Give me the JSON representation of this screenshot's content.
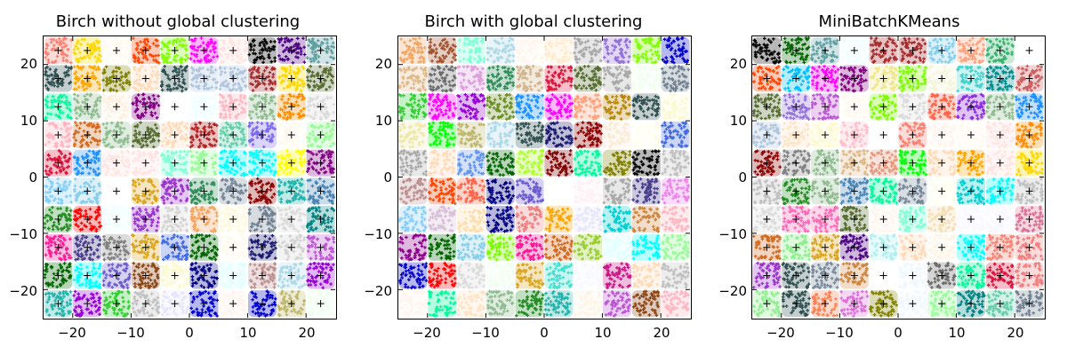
{
  "chart_data": [
    {
      "type": "scatter",
      "title": "Birch without global clustering",
      "xlabel": "",
      "ylabel": "",
      "xlim": [
        -25,
        25
      ],
      "ylim": [
        -25,
        25
      ],
      "xticks": [
        -20,
        -10,
        0,
        10,
        20
      ],
      "yticks": [
        20,
        10,
        0,
        -10,
        -20
      ],
      "xtick_labels": [
        "−20",
        "−10",
        "0",
        "10",
        "20"
      ],
      "ytick_labels": [
        "20",
        "10",
        "0",
        "−10",
        "−20"
      ],
      "grid": false,
      "legend": null,
      "description": "Colored point blobs on a 10x10 grid of cluster centres; black + marks subcluster centroids",
      "grid_centers": [
        -22.5,
        -17.5,
        -12.5,
        -7.5,
        -2.5,
        2.5,
        7.5,
        12.5,
        17.5,
        22.5
      ],
      "cell_colors": [
        [
          "#fa8072",
          "#ffd700",
          "#fffaf0",
          "#ff4500",
          "#7fff00",
          "#ff00ff",
          "#ffe4e1",
          "#000000",
          "#4b0082",
          "#5f9ea0"
        ],
        [
          "#2f4f4f",
          "#ffa500",
          "#808000",
          "#ffdab9",
          "#2f4f4f",
          "#b0c4de",
          "#b0c4de",
          "#a52a2a",
          "#ffd700",
          "#556b2f"
        ],
        [
          "#00fa9a",
          "#8fbc8f",
          "#fff0e0",
          "#800080",
          "#ffffff",
          "#f0ffff",
          "#ffb6c1",
          "#8fbc8f",
          "#ff8c00",
          "#dcdcdc"
        ],
        [
          "#ffb6c1",
          "#d2691e",
          "#8fbc8f",
          "#556b2f",
          "#ffdab9",
          "#b22222",
          "#66cdaa",
          "#7b68ee",
          "#fffaf0",
          "#98fb98"
        ],
        [
          "#dc143c",
          "#1e90ff",
          "#ffe4e1",
          "#ffe4e1",
          "#7fffd4",
          "#98fb98",
          "#00ffff",
          "#00ffff",
          "#ffff00",
          "#800080"
        ],
        [
          "#87cefa",
          "#87ceeb",
          "#ffffff",
          "#daa520",
          "#9932cc",
          "#2e8b57",
          "#778899",
          "#8b0000",
          "#20b2aa",
          "#4682b4"
        ],
        [
          "#228b22",
          "#ff0000",
          "#f0ffff",
          "#9932cc",
          "#d3d3d3",
          "#f4a460",
          "#fff8dc",
          "#708090",
          "#dcdcdc",
          "#008080"
        ],
        [
          "#ff1493",
          "#483d8b",
          "#808080",
          "#daa520",
          "#4169e1",
          "#006400",
          "#fffaf0",
          "#191970",
          "#d3d3d3",
          "#ba55d3"
        ],
        [
          "#006400",
          "#00ffff",
          "#6a5acd",
          "#8b4513",
          "#fafad2",
          "#000080",
          "#e0ffff",
          "#bc8f8f",
          "#add8e6",
          "#9400d3"
        ],
        [
          "#20b2aa",
          "#9400d3",
          "#32cd32",
          "#c0c0c0",
          "#e6e6fa",
          "#0000cd",
          "#fff5ee",
          "#0000cd",
          "#bdb76b",
          "#f0fff0"
        ]
      ],
      "extra_bottom_row": [
        "#ffe4c4",
        "#fffaf0",
        "#808080",
        "#ee82ee",
        "#c71585",
        "#ff00ff",
        "#a0522d",
        "#deb887",
        "#9acd32",
        "#afeeee"
      ]
    },
    {
      "type": "scatter",
      "title": "Birch with global clustering",
      "xlabel": "",
      "ylabel": "",
      "xlim": [
        -25,
        25
      ],
      "ylim": [
        -25,
        25
      ],
      "xticks": [
        -20,
        -10,
        0,
        10,
        20
      ],
      "yticks": [
        20,
        10,
        0,
        -10,
        -20
      ],
      "xtick_labels": [
        "−20",
        "−10",
        "0",
        "10",
        "20"
      ],
      "ytick_labels": [
        "20",
        "10",
        "0",
        "−10",
        "−20"
      ],
      "grid": false,
      "legend": null,
      "description": "Colored point blobs on a 10x10 grid, 100 global clusters; no centroid markers",
      "grid_centers": [
        -22.5,
        -17.5,
        -12.5,
        -7.5,
        -2.5,
        2.5,
        7.5,
        12.5,
        17.5,
        22.5
      ],
      "cell_colors": [
        [
          "#f4a460",
          "#a0522d",
          "#7fffd4",
          "#add8e6",
          "#fff5ee",
          "#ffebcd",
          "#a9a9a9",
          "#9370db",
          "#7fff00",
          "#0000cd"
        ],
        [
          "#deb887",
          "#696969",
          "#dda0dd",
          "#2e8b57",
          "#d2b48c",
          "#dc143c",
          "#556b2f",
          "#a9a9a9",
          "#f0fff0",
          "#708090"
        ],
        [
          "#32cd32",
          "#ff00ff",
          "#9400d3",
          "#6b8e23",
          "#1e90ff",
          "#ff00ff",
          "#ffa07a",
          "#b8860b",
          "#2f4f4f",
          "#fafad2"
        ],
        [
          "#eee8aa",
          "#00ff00",
          "#bdb76b",
          "#add8e6",
          "#2f4f4f",
          "#191970",
          "#8b0000",
          "#faebd7",
          "#fffff0",
          "#4169e1"
        ],
        [
          "#a9a9a9",
          "#ffdab9",
          "#6495ed",
          "#006400",
          "#adff2f",
          "#800000",
          "#00fa9a",
          "#808000",
          "#000000",
          "#c0c0c0"
        ],
        [
          "#bc8f8f",
          "#ff4500",
          "#ff6347",
          "#000080",
          "#6a5acd",
          "#ffffff",
          "#fff0f5",
          "#a9a9a9",
          "#483d8b",
          "#ee82ee"
        ],
        [
          "#87cefa",
          "#d8bfd8",
          "#ffdead",
          "#000080",
          "#f08080",
          "#ffa500",
          "#e6e6fa",
          "#00ced1",
          "#cd853f",
          "#ffb6c1"
        ],
        [
          "#8b008b",
          "#006400",
          "#87ceeb",
          "#7cfc00",
          "#ff1493",
          "#d2691e",
          "#9acd32",
          "#e0ffff",
          "#00ffff",
          "#98fb98"
        ],
        [
          "#0000cd",
          "#ff0000",
          "#dcdcdc",
          "#f0fff0",
          "#daa520",
          "#40e0d0",
          "#f8f8ff",
          "#c71585",
          "#ffdab9",
          "#c0c0c0"
        ],
        [
          "#fff5ee",
          "#00fa9a",
          "#ffe4c4",
          "#8fbc8f",
          "#228b22",
          "#20b2aa",
          "#fdf5e6",
          "#ba55d3",
          "#8b4513",
          "#ffb6c1"
        ]
      ]
    },
    {
      "type": "scatter",
      "title": "MiniBatchKMeans",
      "xlabel": "",
      "ylabel": "",
      "xlim": [
        -25,
        25
      ],
      "ylim": [
        -25,
        25
      ],
      "xticks": [
        -20,
        -10,
        0,
        10,
        20
      ],
      "yticks": [
        20,
        10,
        0,
        -10,
        -20
      ],
      "xtick_labels": [
        "−20",
        "−10",
        "0",
        "10",
        "20"
      ],
      "ytick_labels": [
        "20",
        "10",
        "0",
        "−10",
        "−20"
      ],
      "grid": false,
      "legend": null,
      "description": "Colored point blobs on a 10x10 grid; black + marks cluster centres",
      "grid_centers": [
        -22.5,
        -17.5,
        -12.5,
        -7.5,
        -2.5,
        2.5,
        7.5,
        12.5,
        17.5,
        22.5
      ],
      "cell_colors": [
        [
          "#000000",
          "#006400",
          "#5f9ea0",
          "#f0ffff",
          "#a52a2a",
          "#a52a2a",
          "#87ceeb",
          "#ffa07a",
          "#3cb371",
          "#ffffff"
        ],
        [
          "#ff4500",
          "#00bfff",
          "#ff00ff",
          "#800080",
          "#f0e68c",
          "#7cfc00",
          "#f5f5dc",
          "#48d1cc",
          "#008b8b",
          "#cd5c5c"
        ],
        [
          "#556b2f",
          "#9370db",
          "#ba55d3",
          "#fffaf0",
          "#7cfc00",
          "#dcdcdc",
          "#ff6347",
          "#8a2be2",
          "#8fbc8f",
          "#1e90ff"
        ],
        [
          "#b0c4de",
          "#ffe4c4",
          "#fffacd",
          "#ffc0cb",
          "#ffffff",
          "#fa8072",
          "#fff5ee",
          "#fffaf0",
          "#ffe4e1",
          "#ff8c00"
        ],
        [
          "#8b0000",
          "#808080",
          "#8fbc8f",
          "#deb887",
          "#e9967a",
          "#00ff00",
          "#ffdab9",
          "#ffa500",
          "#ffe4e1",
          "#ffd700"
        ],
        [
          "#c0c0c0",
          "#228b22",
          "#8fbc8f",
          "#4682b4",
          "#00fa9a",
          "#778899",
          "#fffff0",
          "#00ced1",
          "#00ffff",
          "#c0c0c0"
        ],
        [
          "#dcdcdc",
          "#ff69b4",
          "#ff69b4",
          "#556b2f",
          "#fff5ee",
          "#7fffd4",
          "#f5deb3",
          "#f8f8ff",
          "#f8f8ff",
          "#db7093"
        ],
        [
          "#d2691e",
          "#90ee90",
          "#daa520",
          "#4b0082",
          "#afeeee",
          "#ffdab9",
          "#fdf5e6",
          "#00ffff",
          "#fa8072",
          "#f08080"
        ],
        [
          "#9932cc",
          "#2f4f4f",
          "#778899",
          "#cd853f",
          "#ffffff",
          "#f0f8ff",
          "#696969",
          "#00fa9a",
          "#dc143c",
          "#f08080"
        ],
        [
          "#90ee90",
          "#2f4f4f",
          "#ff7f50",
          "#da70d6",
          "#808000",
          "#f0f8ff",
          "#98fb98",
          "#008080",
          "#66cdaa",
          "#708090"
        ]
      ]
    }
  ]
}
